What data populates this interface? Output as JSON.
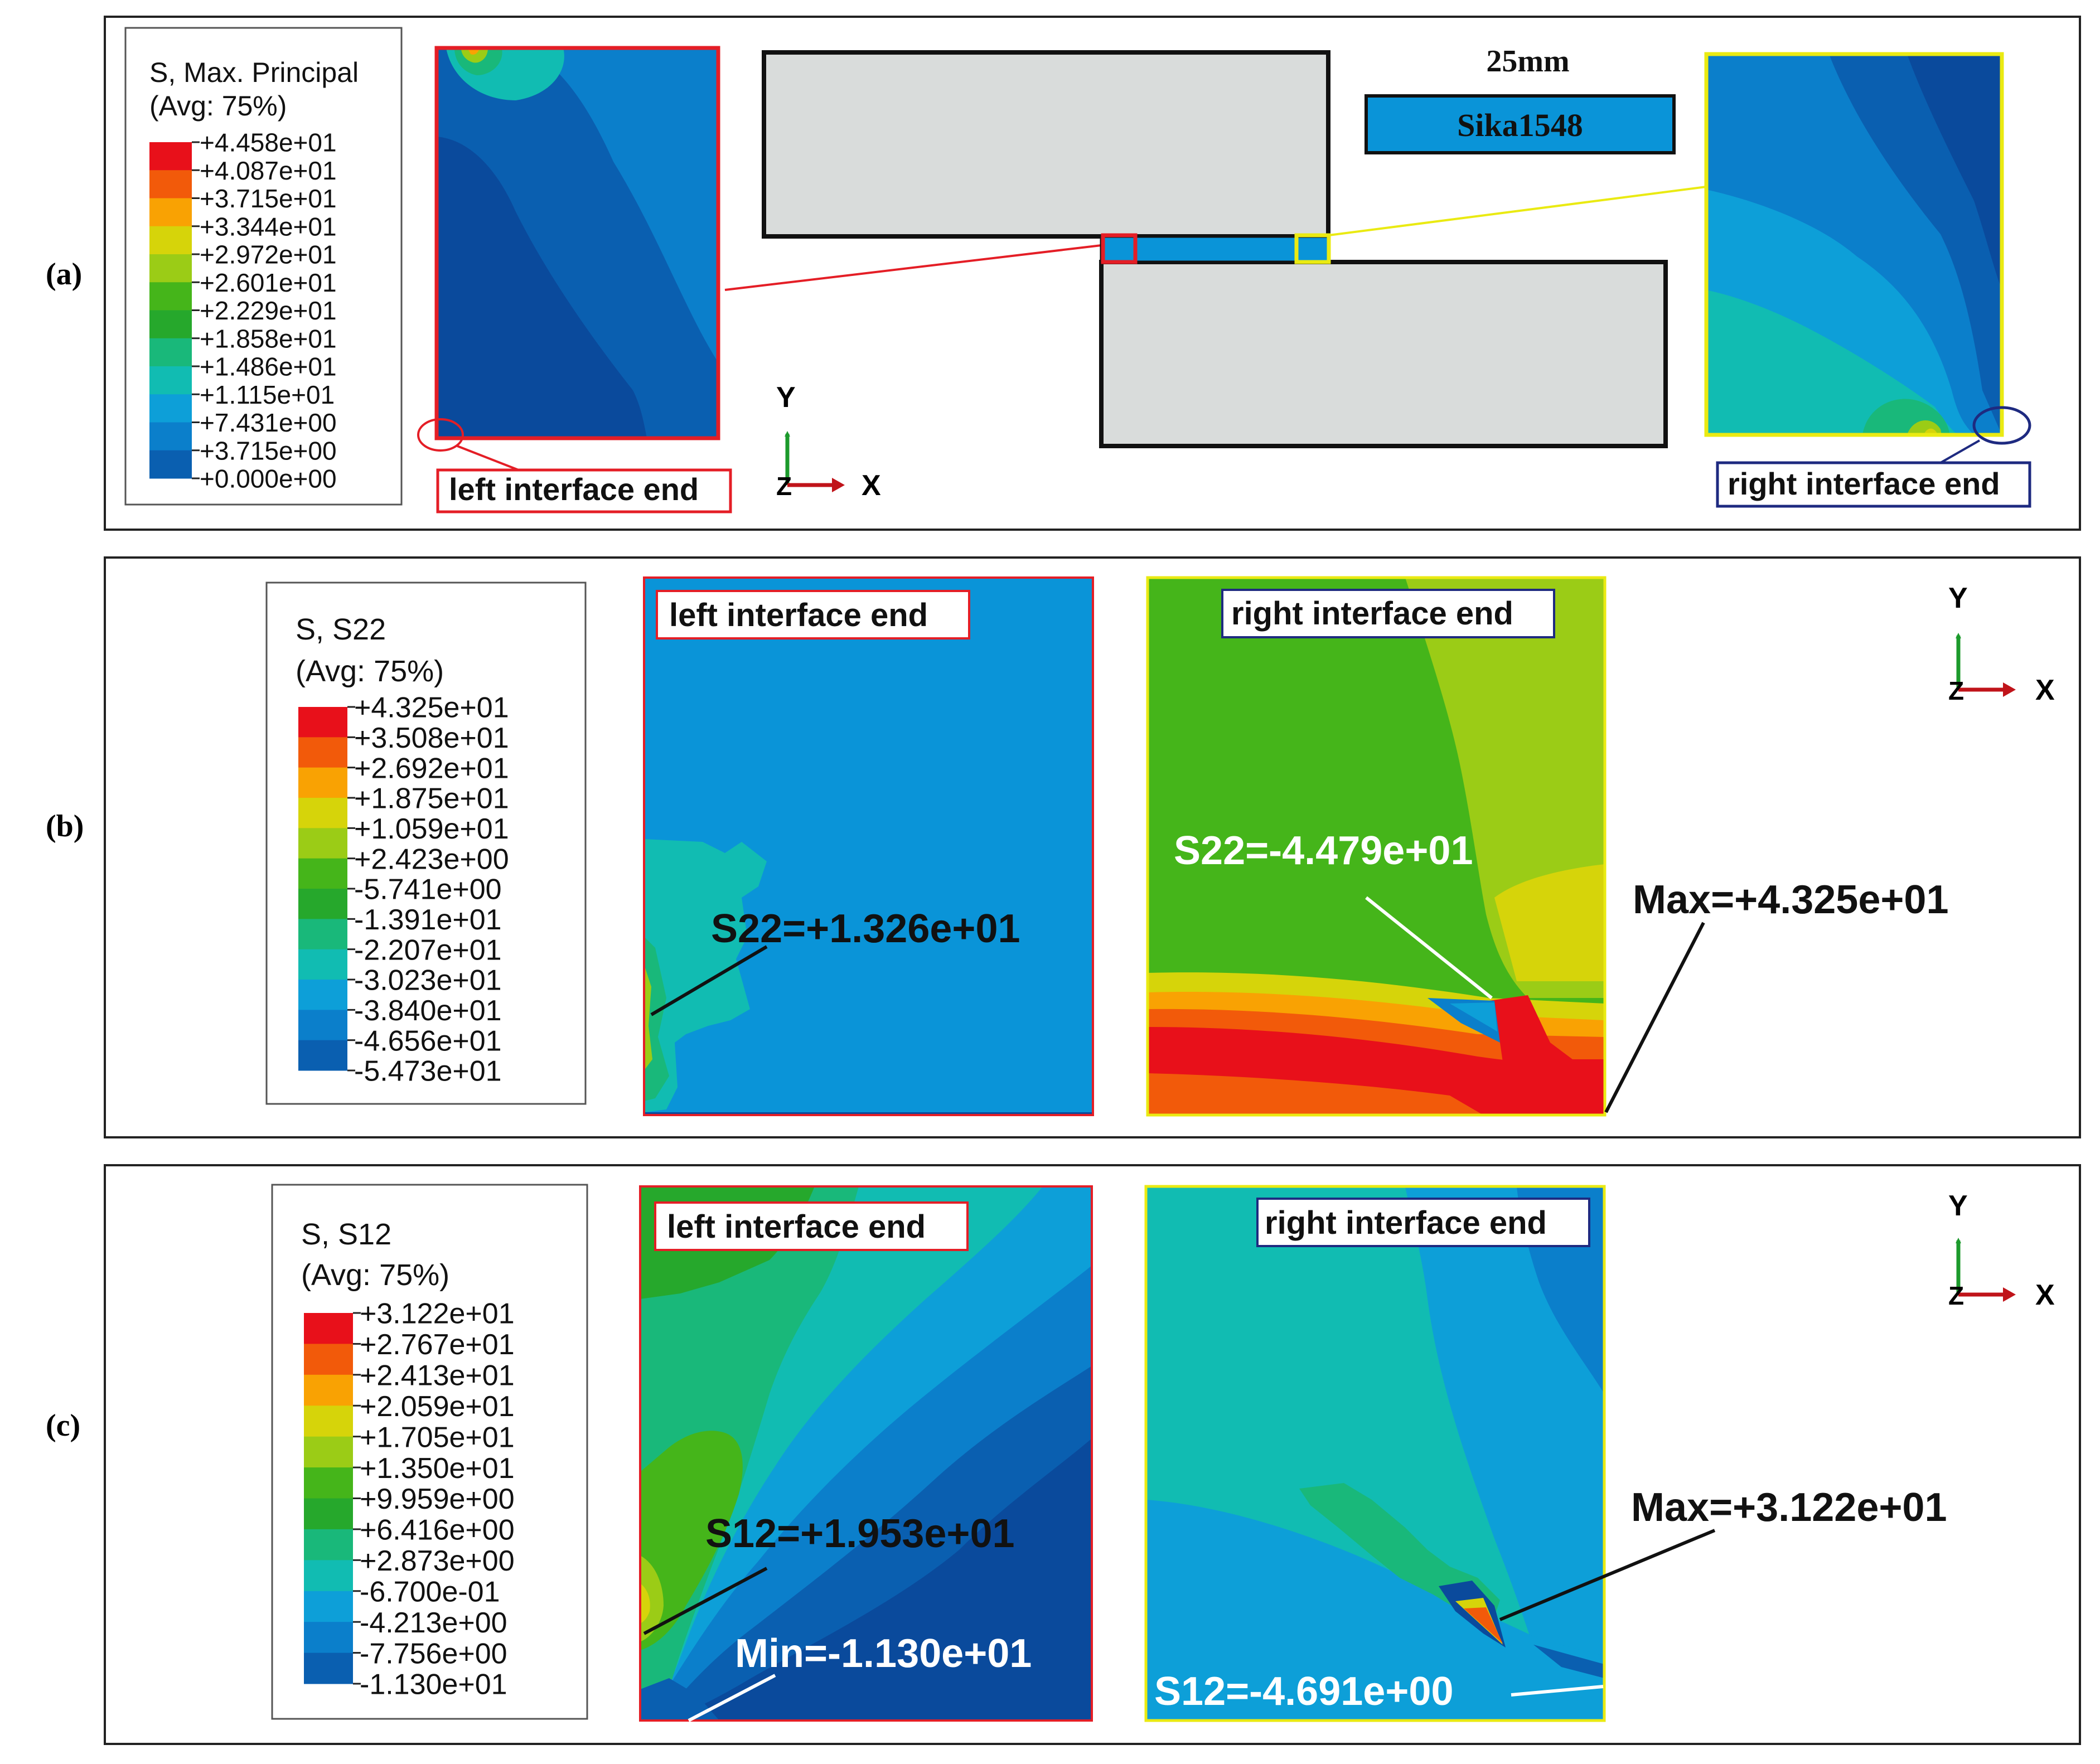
{
  "panels": {
    "a": {
      "label": "(a)",
      "legend": {
        "title": "S, Max. Principal",
        "subtitle": "(Avg: 75%)",
        "values": [
          "+4.458e+01",
          "+4.087e+01",
          "+3.715e+01",
          "+3.344e+01",
          "+2.972e+01",
          "+2.601e+01",
          "+2.229e+01",
          "+1.858e+01",
          "+1.486e+01",
          "+1.115e+01",
          "+7.431e+00",
          "+3.715e+00",
          "+0.000e+00"
        ]
      },
      "left_label": "left interface end",
      "right_label": "right interface end",
      "scale_text": "25mm",
      "adhesive_name": "Sika1548",
      "axis": {
        "y": "Y",
        "z": "Z",
        "x": "X"
      }
    },
    "b": {
      "label": "(b)",
      "legend": {
        "title": "S, S22",
        "subtitle": "(Avg: 75%)",
        "values": [
          "+4.325e+01",
          "+3.508e+01",
          "+2.692e+01",
          "+1.875e+01",
          "+1.059e+01",
          "+2.423e+00",
          "-5.741e+00",
          "-1.391e+01",
          "-2.207e+01",
          "-3.023e+01",
          "-3.840e+01",
          "-4.656e+01",
          "-5.473e+01"
        ]
      },
      "left_label": "left interface end",
      "right_label": "right interface end",
      "left_annotation": "S22=+1.326e+01",
      "right_annotation": "S22=-4.479e+01",
      "max_annotation": "Max=+4.325e+01",
      "axis": {
        "y": "Y",
        "z": "Z",
        "x": "X"
      }
    },
    "c": {
      "label": "(c)",
      "legend": {
        "title": "S, S12",
        "subtitle": "(Avg: 75%)",
        "values": [
          "+3.122e+01",
          "+2.767e+01",
          "+2.413e+01",
          "+2.059e+01",
          "+1.705e+01",
          "+1.350e+01",
          "+9.959e+00",
          "+6.416e+00",
          "+2.873e+00",
          "-6.700e-01",
          "-4.213e+00",
          "-7.756e+00",
          "-1.130e+01"
        ]
      },
      "left_label": "left interface end",
      "right_label": "right interface end",
      "left_annotation": "S12=+1.953e+01",
      "min_annotation": "Min=-1.130e+01",
      "right_annotation": "S12=-4.691e+00",
      "max_annotation": "Max=+3.122e+01",
      "axis": {
        "y": "Y",
        "z": "Z",
        "x": "X"
      }
    }
  },
  "colors": {
    "contour_scale": [
      "#e8101a",
      "#f25a0a",
      "#f9a203",
      "#d6d40a",
      "#9bcc16",
      "#45b51a",
      "#26a82c",
      "#19b87a",
      "#11bcb2",
      "#0d9fd8",
      "#0b7fcb",
      "#0a5fb0",
      "#0a4a9c"
    ],
    "steel_gray": "#d9dcdb",
    "red_box": "#e41e26",
    "yellow_box": "#eaea12",
    "navy_box": "#1e2a80"
  }
}
